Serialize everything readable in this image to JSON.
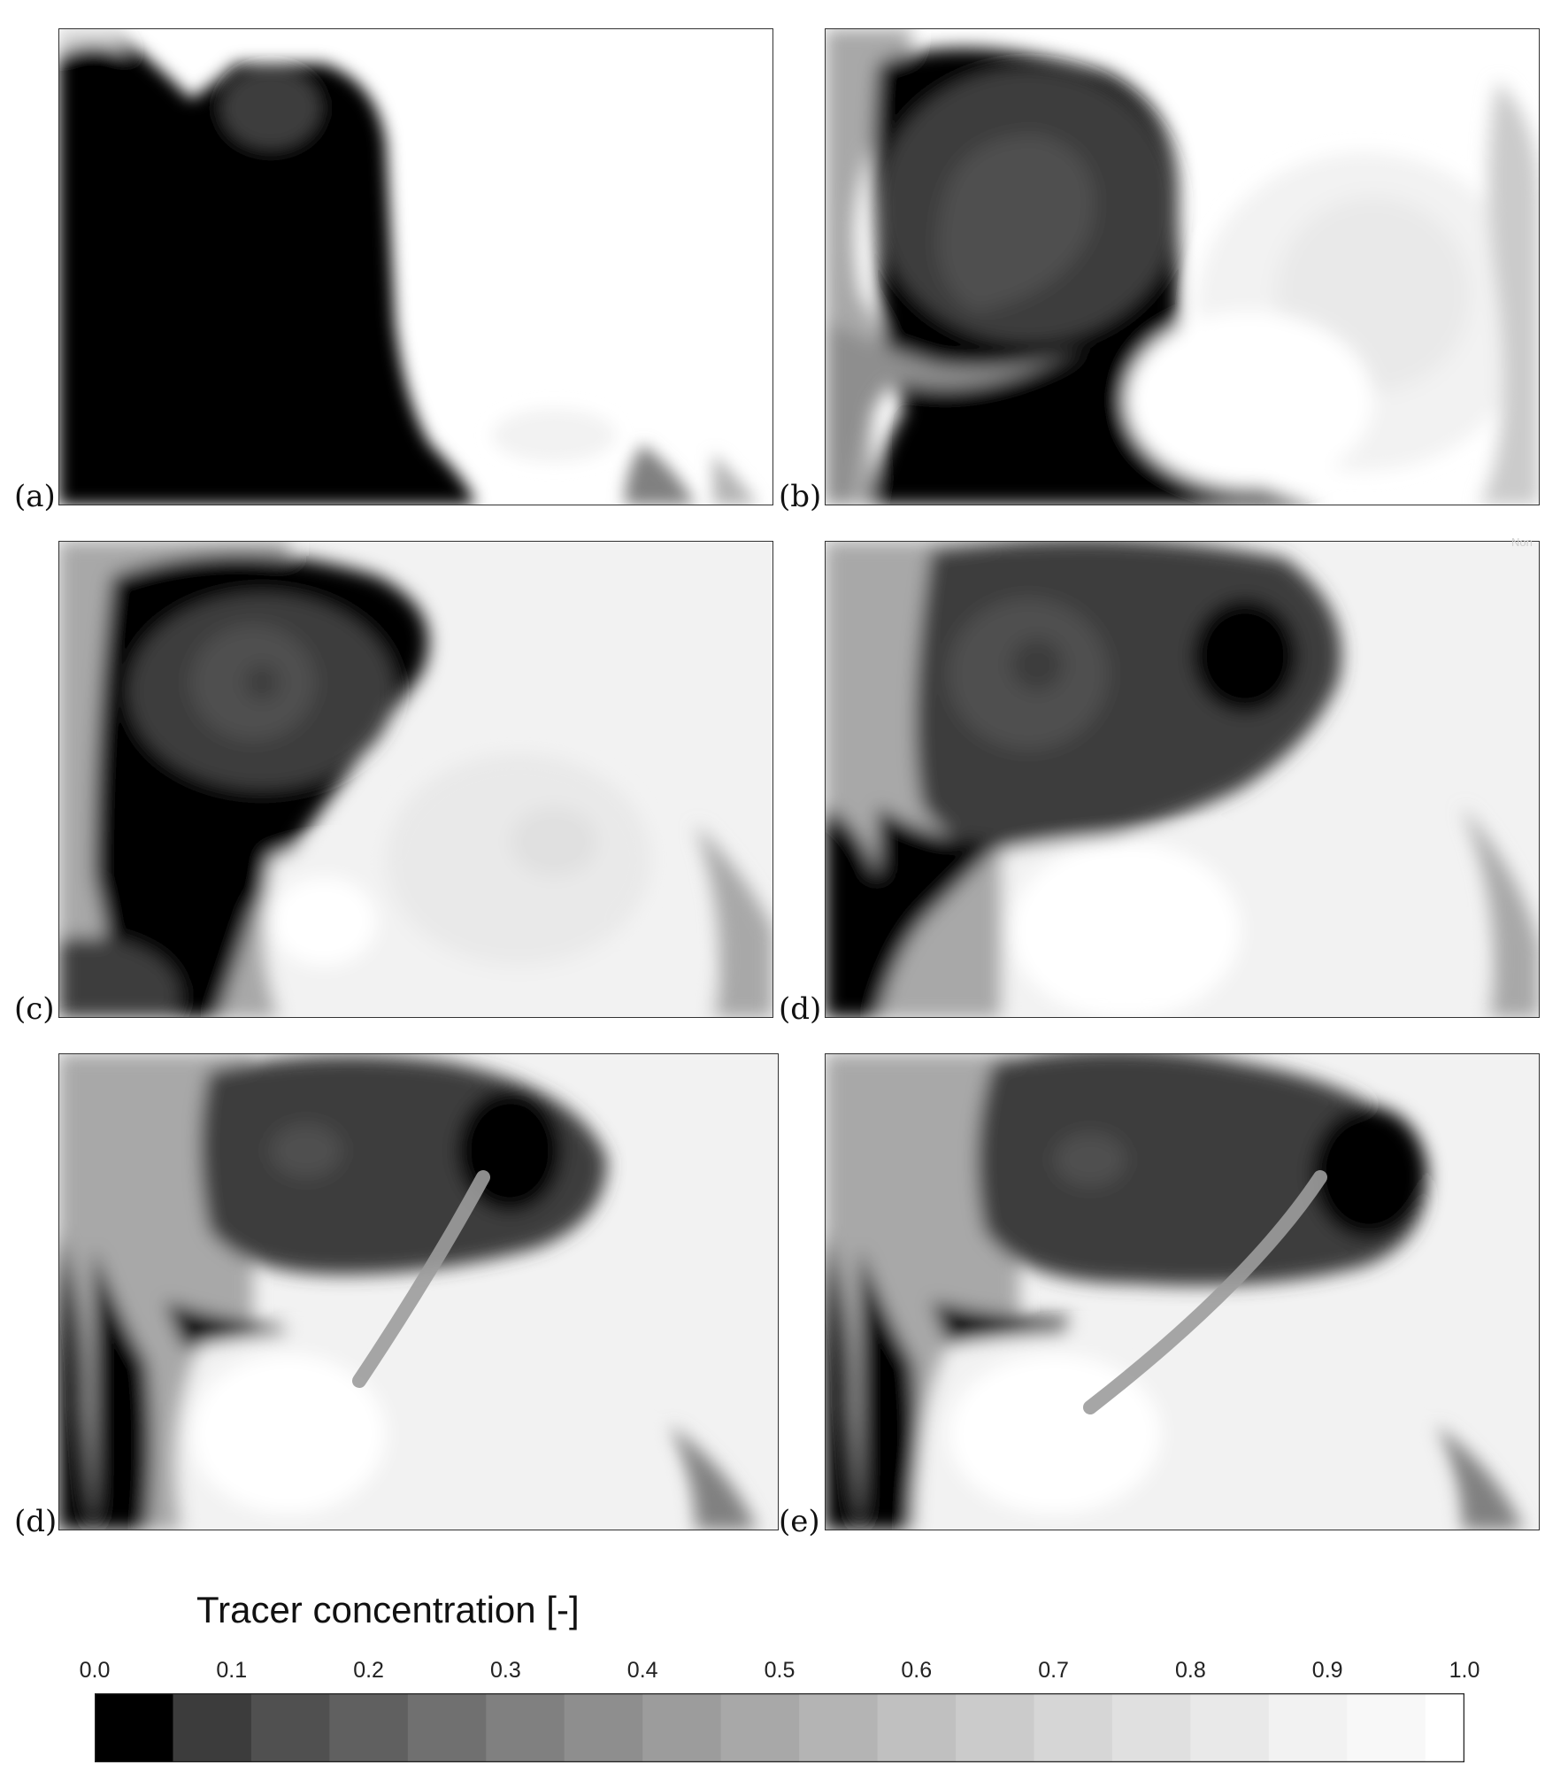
{
  "panels": [
    {
      "label": "(a)"
    },
    {
      "label": "(b)"
    },
    {
      "label": "(c)"
    },
    {
      "label": "(d)"
    },
    {
      "label": "(d)"
    },
    {
      "label": "(e)"
    }
  ],
  "corner_tag": "Non",
  "colorbar": {
    "title": "Tracer concentration [-]",
    "ticks": [
      "0.0",
      "0.1",
      "0.2",
      "0.3",
      "0.4",
      "0.5",
      "0.6",
      "0.7",
      "0.8",
      "0.9",
      "1.0"
    ],
    "levels": [
      "#000000",
      "#3c3c3c",
      "#505050",
      "#606060",
      "#707070",
      "#808080",
      "#8e8e8e",
      "#9c9c9c",
      "#a8a8a8",
      "#b4b4b4",
      "#c0c0c0",
      "#cbcbcb",
      "#d6d6d6",
      "#e0e0e0",
      "#e9e9e9",
      "#f2f2f2",
      "#f8f8f8",
      "#ffffff"
    ]
  }
}
